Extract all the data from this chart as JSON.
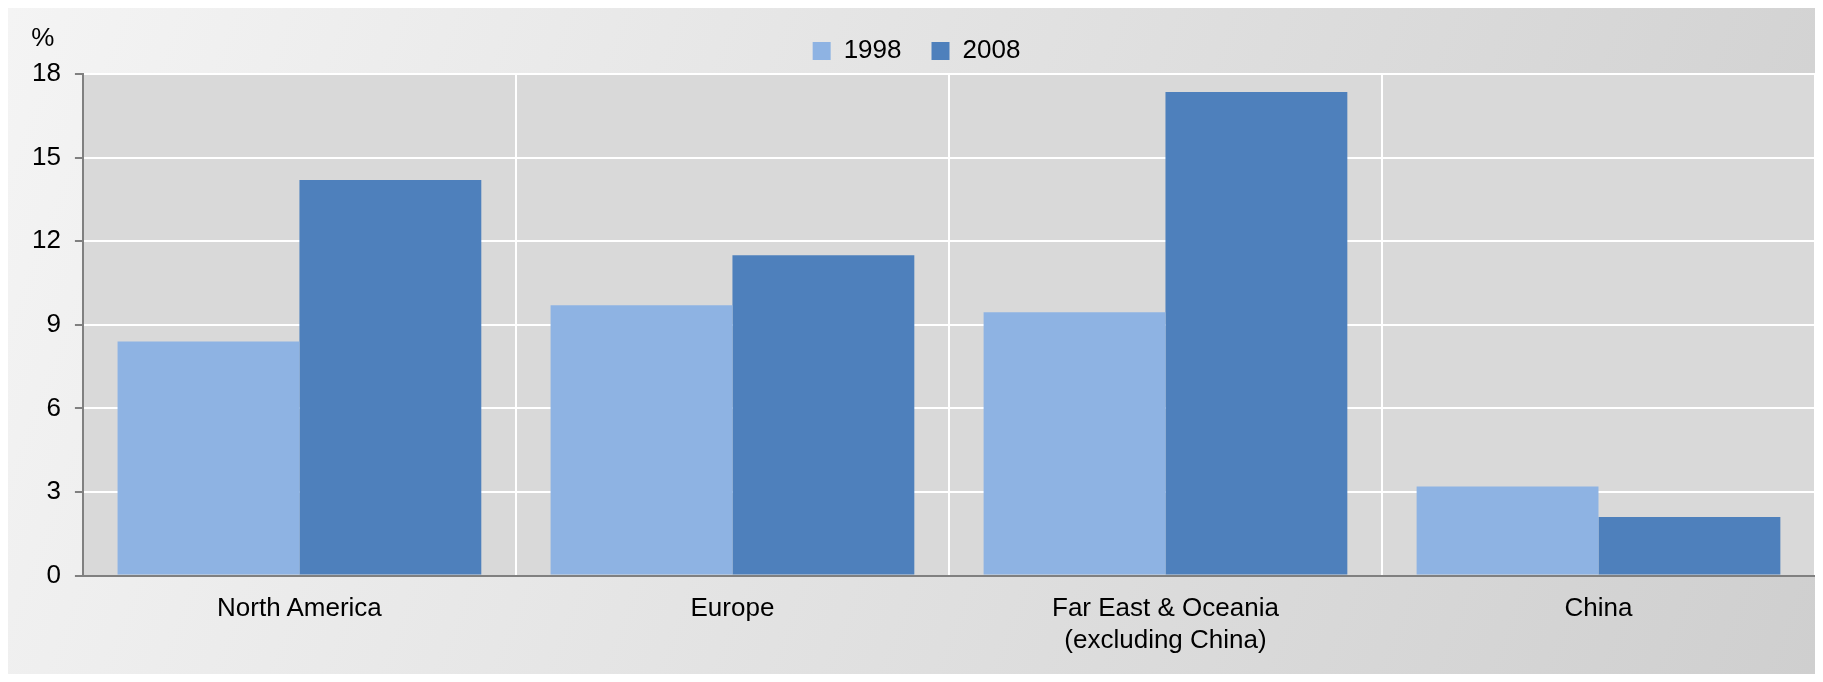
{
  "chart_data": {
    "type": "bar",
    "ylabel": "%",
    "categories": [
      "North America",
      "Europe",
      "Far East & Oceania\n(excluding China)",
      "China"
    ],
    "series": [
      {
        "name": "1998",
        "color": "#8eb3e3",
        "values": [
          8.4,
          9.7,
          9.45,
          3.2
        ]
      },
      {
        "name": "2008",
        "color": "#4e80bc",
        "values": [
          14.2,
          11.5,
          17.35,
          2.1
        ]
      }
    ],
    "ylim": [
      0,
      18
    ],
    "yticks": [
      0,
      3,
      6,
      9,
      12,
      15,
      18
    ],
    "grid": true,
    "legend": "top"
  }
}
